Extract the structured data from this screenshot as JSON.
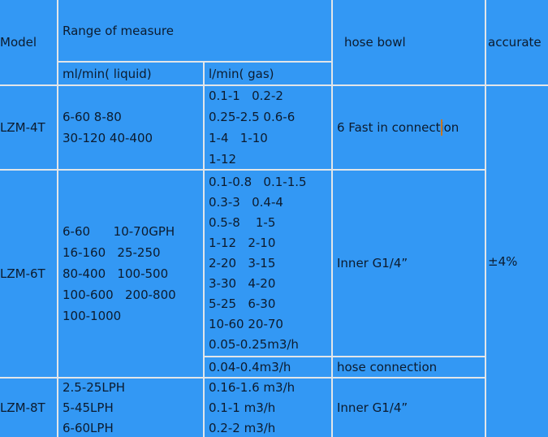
{
  "colors": {
    "background": "#3398f4",
    "grid": "#e2e6e9",
    "text": "#0c1b2e",
    "caret": "#c87722"
  },
  "header": {
    "model": "Model",
    "range": "Range of measure",
    "liquid_unit": "ml/min( liquid)",
    "gas_unit": "l/min( gas)",
    "hose_bowl": "hose bowl",
    "accurate": "accurate"
  },
  "table": {
    "lzm4t": {
      "model": "LZM-4T",
      "liquid": "6-60 8-80\n30-120 40-400",
      "gas": "0.1-1   0.2-2\n0.25-2.5 0.6-6\n1-4   1-10\n1-12",
      "hose": "6 Fast in connection"
    },
    "lzm6t": {
      "model": "LZM-6T",
      "liquid": "6-60      10-70GPH\n16-160   25-250\n80-400   100-500\n100-600   200-800\n100-1000",
      "gas": "0.1-0.8   0.1-1.5\n0.3-3   0.4-4\n0.5-8    1-5\n1-12   2-10\n2-20   3-15\n3-30   4-20\n5-25   6-30\n10-60 20-70\n0.05-0.25m3/h",
      "hose": "Inner G1/4”"
    },
    "sub_row": {
      "gas": "0.04-0.4m3/h",
      "hose": "hose connection"
    },
    "lzm8t": {
      "model": "LZM-8T",
      "liquid": "2.5-25LPH\n5-45LPH\n6-60LPH",
      "gas": "0.16-1.6 m3/h\n0.1-1 m3/h\n0.2-2 m3/h",
      "hose": "Inner G1/4”"
    },
    "accuracy": "±4%"
  }
}
